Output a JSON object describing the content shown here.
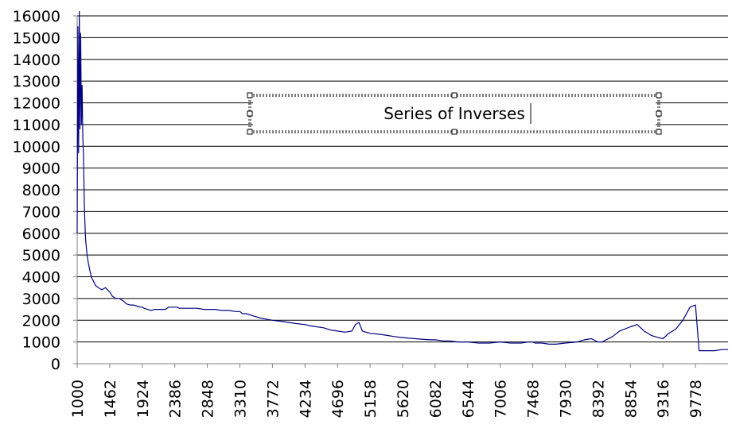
{
  "chart_data": {
    "type": "line",
    "title": "Series of Inverses",
    "xlabel": "",
    "ylabel": "",
    "ylim": [
      0,
      16000
    ],
    "xlim": [
      1000,
      10240
    ],
    "grid": true,
    "legend": "none",
    "colors": {
      "line": "#000080",
      "grid": "#000000",
      "axis": "#808080",
      "title_frame": "#7f7f7f"
    },
    "x_tick_labels": [
      "1000",
      "1462",
      "1924",
      "2386",
      "2848",
      "3310",
      "3772",
      "4234",
      "4696",
      "5158",
      "5620",
      "6082",
      "6544",
      "7006",
      "7468",
      "7930",
      "8392",
      "8854",
      "9316",
      "9778"
    ],
    "y_tick_labels": [
      "0",
      "1000",
      "2000",
      "3000",
      "4000",
      "5000",
      "6000",
      "7000",
      "8000",
      "9000",
      "10000",
      "11000",
      "12000",
      "13000",
      "14000",
      "15000",
      "16000"
    ],
    "series": [
      {
        "x": [
          1000,
          1010,
          1020,
          1030,
          1040,
          1050,
          1060,
          1070,
          1080,
          1090,
          1100,
          1110,
          1120,
          1140,
          1160,
          1180,
          1200,
          1230,
          1260,
          1300,
          1350,
          1400,
          1462,
          1500,
          1550,
          1600,
          1650,
          1700,
          1750,
          1800,
          1850,
          1900,
          1924,
          1950,
          2000,
          2050,
          2100,
          2150,
          2200,
          2250,
          2300,
          2350,
          2386,
          2420,
          2450,
          2500,
          2550,
          2600,
          2700,
          2800,
          2848,
          2950,
          3050,
          3150,
          3250,
          3310,
          3350,
          3400,
          3500,
          3600,
          3772,
          3900,
          4000,
          4100,
          4234,
          4300,
          4400,
          4500,
          4600,
          4696,
          4800,
          4900,
          4950,
          5000,
          5050,
          5100,
          5158,
          5300,
          5400,
          5500,
          5620,
          5800,
          6000,
          6082,
          6200,
          6300,
          6400,
          6544,
          6700,
          6850,
          7006,
          7150,
          7300,
          7400,
          7468,
          7500,
          7600,
          7700,
          7800,
          7930,
          8100,
          8200,
          8300,
          8392,
          8450,
          8600,
          8700,
          8854,
          8950,
          9050,
          9150,
          9250,
          9316,
          9400,
          9500,
          9600,
          9700,
          9778,
          9830,
          9880,
          9950,
          10050,
          10150,
          10240
        ],
        "y": [
          6000,
          15500,
          9700,
          16200,
          10800,
          15200,
          11000,
          12800,
          10400,
          9500,
          7500,
          6500,
          5700,
          5000,
          4600,
          4300,
          4000,
          3800,
          3600,
          3500,
          3400,
          3500,
          3300,
          3100,
          3000,
          3000,
          2900,
          2750,
          2700,
          2700,
          2650,
          2600,
          2600,
          2550,
          2500,
          2450,
          2500,
          2500,
          2500,
          2500,
          2600,
          2600,
          2600,
          2600,
          2550,
          2550,
          2550,
          2550,
          2550,
          2500,
          2500,
          2500,
          2450,
          2450,
          2400,
          2400,
          2300,
          2300,
          2200,
          2100,
          2000,
          1950,
          1900,
          1850,
          1800,
          1750,
          1700,
          1650,
          1550,
          1500,
          1450,
          1500,
          1800,
          1900,
          1500,
          1450,
          1400,
          1350,
          1300,
          1250,
          1200,
          1150,
          1100,
          1100,
          1050,
          1050,
          1000,
          1000,
          950,
          950,
          1000,
          950,
          950,
          1000,
          1000,
          950,
          950,
          900,
          900,
          950,
          1000,
          1100,
          1150,
          1000,
          1000,
          1250,
          1500,
          1700,
          1800,
          1500,
          1300,
          1200,
          1150,
          1400,
          1600,
          2000,
          2600,
          2700,
          600,
          600,
          600,
          600,
          650,
          650
        ]
      }
    ]
  }
}
